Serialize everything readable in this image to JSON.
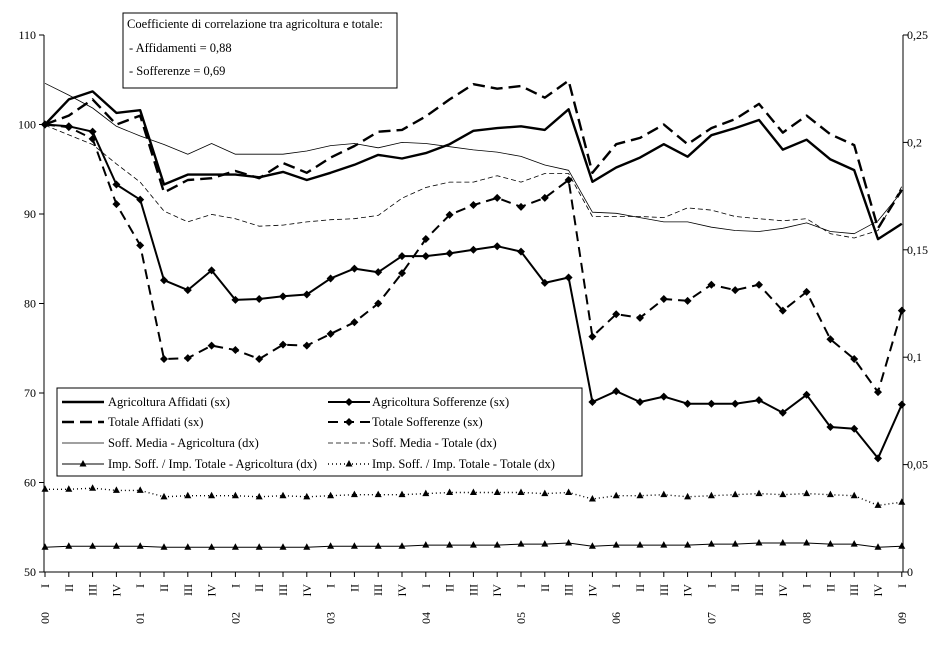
{
  "chart_data": {
    "type": "line",
    "title": "",
    "xlabel": "",
    "ylabel": "",
    "ylim": [
      50,
      110
    ],
    "y2lim": [
      0,
      0.25
    ],
    "y_ticks": [
      "50",
      "60",
      "70",
      "80",
      "90",
      "100",
      "110"
    ],
    "y2_ticks": [
      "0",
      "0,05",
      "0,1",
      "0,15",
      "0,2",
      "0,25"
    ],
    "grid": false,
    "legend_position": "bottom-left",
    "categories": [
      "I",
      "II",
      "III",
      "IV",
      "I",
      "II",
      "III",
      "IV",
      "I",
      "II",
      "III",
      "IV",
      "I",
      "II",
      "III",
      "IV",
      "I",
      "II",
      "III",
      "IV",
      "I",
      "II",
      "III",
      "IV",
      "I",
      "II",
      "III",
      "IV",
      "I",
      "II",
      "III",
      "IV",
      "I",
      "II",
      "III",
      "IV",
      "I"
    ],
    "year_labels": [
      "00",
      "01",
      "02",
      "03",
      "04",
      "05",
      "06",
      "07",
      "08",
      "09"
    ],
    "note": {
      "title": "Coefficiente di correlazione tra agricoltura e totale:",
      "line1": "- Affidamenti = 0,88",
      "line2": "- Sofferenze = 0,69"
    },
    "series": [
      {
        "name": "Agricoltura Affidati (sx)",
        "axis": "left",
        "values": [
          100,
          102.8,
          103.7,
          101.3,
          101.6,
          93.3,
          94.4,
          94.4,
          94.4,
          94.1,
          94.7,
          93.8,
          94.6,
          95.5,
          96.6,
          96.2,
          96.8,
          97.8,
          99.3,
          99.6,
          99.8,
          99.4,
          101.7,
          93.6,
          95.2,
          96.3,
          97.8,
          96.4,
          98.8,
          99.6,
          100.5,
          97.2,
          98.3,
          96.1,
          94.9,
          87.2,
          88.9
        ]
      },
      {
        "name": "Agricoltura Sofferenze (sx)",
        "axis": "left",
        "values": [
          100,
          99.8,
          99.2,
          93.3,
          91.6,
          82.6,
          81.5,
          83.7,
          80.4,
          80.5,
          80.8,
          81.0,
          82.8,
          83.9,
          83.5,
          85.3,
          85.3,
          85.6,
          86.0,
          86.4,
          85.8,
          82.3,
          82.9,
          69.0,
          70.2,
          69.0,
          69.6,
          68.8,
          68.8,
          68.8,
          69.2,
          67.8,
          69.8,
          66.2,
          66.0,
          62.7,
          68.7
        ]
      },
      {
        "name": "Totale Affidati (sx)",
        "axis": "left",
        "values": [
          100,
          101.0,
          102.8,
          100.0,
          101.0,
          92.4,
          93.8,
          94.0,
          94.8,
          94.0,
          95.7,
          94.6,
          96.3,
          97.6,
          99.2,
          99.4,
          100.9,
          102.8,
          104.5,
          104.0,
          104.3,
          103.0,
          104.9,
          94.6,
          97.8,
          98.5,
          100.0,
          97.8,
          99.6,
          100.6,
          102.3,
          99.1,
          101.0,
          98.9,
          97.7,
          88.4,
          92.7
        ]
      },
      {
        "name": "Totale Sofferenze (sx)",
        "axis": "left",
        "values": [
          100,
          99.7,
          98.4,
          91.1,
          86.5,
          73.8,
          73.9,
          75.3,
          74.8,
          73.8,
          75.4,
          75.3,
          76.6,
          77.9,
          80.0,
          83.4,
          87.2,
          89.9,
          91.0,
          91.8,
          90.8,
          91.8,
          93.8,
          76.3,
          78.8,
          78.4,
          80.5,
          80.3,
          82.1,
          81.5,
          82.1,
          79.2,
          81.3,
          76.0,
          73.8,
          70.1,
          79.2
        ]
      },
      {
        "name": "Soff. Media - Agricoltura (dx)",
        "axis": "right",
        "values": [
          0.2275,
          0.222,
          0.216,
          0.2075,
          0.203,
          0.199,
          0.1945,
          0.1995,
          0.1945,
          0.1945,
          0.1945,
          0.196,
          0.1985,
          0.1995,
          0.1975,
          0.2,
          0.1995,
          0.198,
          0.1965,
          0.1955,
          0.1935,
          0.1895,
          0.187,
          0.1675,
          0.167,
          0.165,
          0.163,
          0.163,
          0.1605,
          0.159,
          0.1585,
          0.16,
          0.1625,
          0.1585,
          0.1575,
          0.1635,
          0.177
        ]
      },
      {
        "name": "Soff. Media - Totale (dx)",
        "axis": "right",
        "values": [
          0.208,
          0.2035,
          0.199,
          0.19,
          0.1815,
          0.168,
          0.163,
          0.1665,
          0.1645,
          0.161,
          0.1615,
          0.163,
          0.164,
          0.1645,
          0.166,
          0.174,
          0.179,
          0.1815,
          0.1815,
          0.1845,
          0.1815,
          0.1855,
          0.1855,
          0.1655,
          0.1655,
          0.1655,
          0.165,
          0.1695,
          0.1685,
          0.1655,
          0.1645,
          0.1635,
          0.1645,
          0.1575,
          0.1555,
          0.159,
          0.1795
        ]
      },
      {
        "name": "Imp. Soff. / Imp. Totale - Agricoltura (dx)",
        "axis": "right",
        "values": [
          0.0115,
          0.012,
          0.012,
          0.012,
          0.012,
          0.0115,
          0.0115,
          0.0115,
          0.0115,
          0.0115,
          0.0115,
          0.0115,
          0.012,
          0.012,
          0.012,
          0.012,
          0.0125,
          0.0125,
          0.0125,
          0.0125,
          0.013,
          0.013,
          0.0135,
          0.012,
          0.0125,
          0.0125,
          0.0125,
          0.0125,
          0.013,
          0.013,
          0.0135,
          0.0135,
          0.0135,
          0.013,
          0.013,
          0.0115,
          0.012
        ]
      },
      {
        "name": "Imp. Soff. / Imp. Totale - Totale (dx)",
        "axis": "right",
        "values": [
          0.0385,
          0.0385,
          0.039,
          0.038,
          0.038,
          0.035,
          0.0355,
          0.0355,
          0.0355,
          0.035,
          0.0355,
          0.035,
          0.0355,
          0.036,
          0.036,
          0.036,
          0.0365,
          0.037,
          0.037,
          0.037,
          0.037,
          0.0365,
          0.037,
          0.034,
          0.0355,
          0.0355,
          0.036,
          0.035,
          0.0355,
          0.036,
          0.0365,
          0.036,
          0.0365,
          0.036,
          0.0355,
          0.031,
          0.0325
        ]
      }
    ]
  },
  "colors": {
    "ink": "#000000",
    "background": "#ffffff"
  }
}
